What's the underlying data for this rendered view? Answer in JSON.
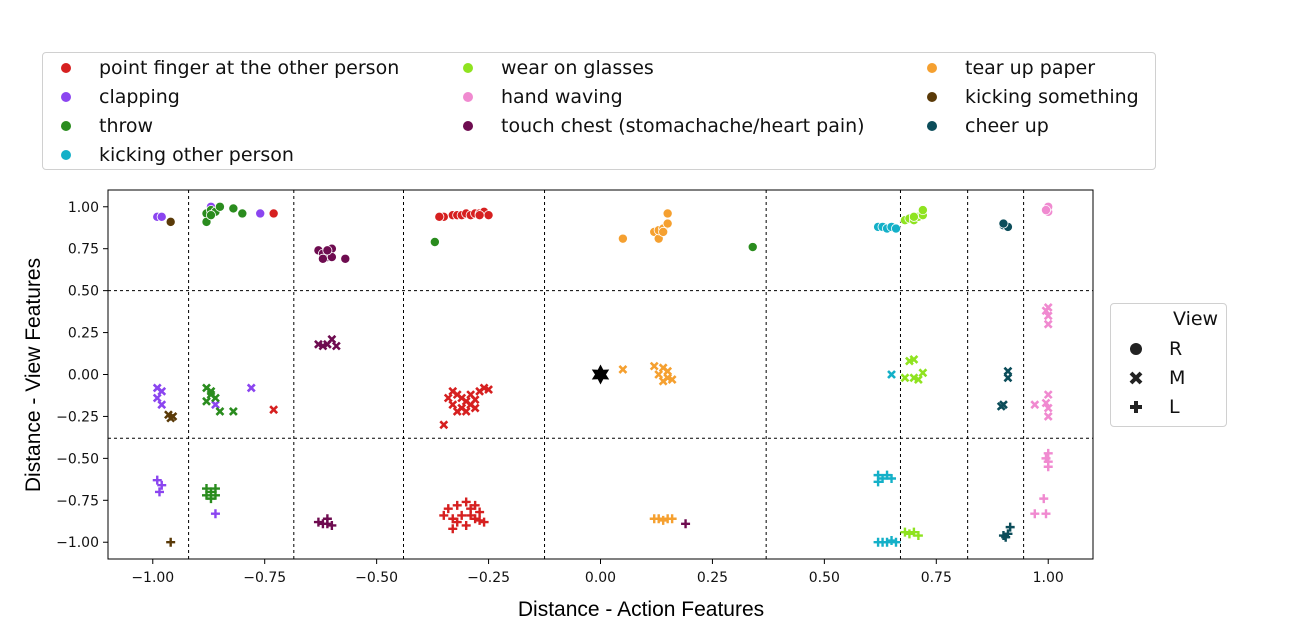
{
  "legend_colors": {
    "title": "",
    "items": [
      {
        "label": "point finger at the other person",
        "color": "#d62020"
      },
      {
        "label": "clapping",
        "color": "#8b45f0"
      },
      {
        "label": "throw",
        "color": "#2a8c1e"
      },
      {
        "label": "kicking other person",
        "color": "#14b0c8"
      },
      {
        "label": "wear on glasses",
        "color": "#8fe320"
      },
      {
        "label": "hand waving",
        "color": "#f08ad0"
      },
      {
        "label": "touch chest (stomachache/heart pain)",
        "color": "#6e0c50"
      },
      {
        "label": "tear up paper",
        "color": "#f5a030"
      },
      {
        "label": "kicking something",
        "color": "#5a3a08"
      },
      {
        "label": "cheer up",
        "color": "#0c4d5a"
      }
    ]
  },
  "legend_markers": {
    "title": "View",
    "items": [
      {
        "label": "R",
        "marker": "circle"
      },
      {
        "label": "M",
        "marker": "x"
      },
      {
        "label": "L",
        "marker": "plus"
      }
    ]
  },
  "chart_data": {
    "type": "scatter",
    "xlabel": "Distance - Action Features",
    "ylabel": "Distance - View Features",
    "xlim": [
      -1.1,
      1.1
    ],
    "ylim": [
      -1.1,
      1.1
    ],
    "xticks": [
      -1.0,
      -0.75,
      -0.5,
      -0.25,
      0.0,
      0.25,
      0.5,
      0.75,
      1.0
    ],
    "xtick_labels": [
      "−1.00",
      "−0.75",
      "−0.50",
      "−0.25",
      "0.00",
      "0.25",
      "0.50",
      "0.75",
      "1.00"
    ],
    "yticks": [
      1.0,
      0.75,
      0.5,
      0.25,
      0.0,
      -0.25,
      -0.5,
      -0.75,
      -1.0
    ],
    "ytick_labels": [
      "1.00",
      "0.75",
      "0.50",
      "0.25",
      "0.00",
      "−0.25",
      "−0.50",
      "−0.75",
      "−1.00"
    ],
    "grid": false,
    "dashed_vertical_lines": [
      -0.92,
      -0.685,
      -0.44,
      -0.125,
      0.37,
      0.67,
      0.82,
      0.945
    ],
    "dashed_horizontal_lines": [
      0.5,
      -0.38
    ],
    "anchor_point": {
      "x": 0.0,
      "y": 0.0,
      "marker": "star",
      "color": "#000000"
    },
    "series": [
      {
        "name": "point finger at the other person",
        "color": "#d62020",
        "R": [
          [
            -0.33,
            0.95
          ],
          [
            -0.32,
            0.95
          ],
          [
            -0.31,
            0.95
          ],
          [
            -0.3,
            0.96
          ],
          [
            -0.29,
            0.95
          ],
          [
            -0.28,
            0.96
          ],
          [
            -0.27,
            0.96
          ],
          [
            -0.26,
            0.97
          ],
          [
            -0.25,
            0.95
          ],
          [
            -0.35,
            0.94
          ],
          [
            -0.36,
            0.94
          ],
          [
            -0.27,
            0.95
          ],
          [
            -0.73,
            0.96
          ]
        ],
        "M": [
          [
            -0.34,
            -0.14
          ],
          [
            -0.33,
            -0.18
          ],
          [
            -0.32,
            -0.12
          ],
          [
            -0.31,
            -0.2
          ],
          [
            -0.3,
            -0.16
          ],
          [
            -0.29,
            -0.12
          ],
          [
            -0.28,
            -0.15
          ],
          [
            -0.27,
            -0.1
          ],
          [
            -0.26,
            -0.08
          ],
          [
            -0.3,
            -0.22
          ],
          [
            -0.32,
            -0.22
          ],
          [
            -0.28,
            -0.2
          ],
          [
            -0.25,
            -0.09
          ],
          [
            -0.33,
            -0.1
          ],
          [
            -0.35,
            -0.3
          ],
          [
            -0.29,
            -0.18
          ],
          [
            -0.31,
            -0.14
          ],
          [
            -0.73,
            -0.21
          ]
        ],
        "L": [
          [
            -0.34,
            -0.8
          ],
          [
            -0.33,
            -0.86
          ],
          [
            -0.32,
            -0.78
          ],
          [
            -0.31,
            -0.84
          ],
          [
            -0.3,
            -0.9
          ],
          [
            -0.29,
            -0.8
          ],
          [
            -0.28,
            -0.86
          ],
          [
            -0.27,
            -0.82
          ],
          [
            -0.26,
            -0.88
          ],
          [
            -0.33,
            -0.92
          ],
          [
            -0.3,
            -0.76
          ],
          [
            -0.28,
            -0.78
          ],
          [
            -0.35,
            -0.84
          ],
          [
            -0.32,
            -0.88
          ],
          [
            -0.27,
            -0.87
          ],
          [
            -0.29,
            -0.84
          ]
        ]
      },
      {
        "name": "clapping",
        "color": "#8b45f0",
        "R": [
          [
            -0.99,
            0.94
          ],
          [
            -0.98,
            0.94
          ],
          [
            -0.87,
            1.0
          ],
          [
            -0.76,
            0.96
          ]
        ],
        "M": [
          [
            -0.99,
            -0.08
          ],
          [
            -0.98,
            -0.1
          ],
          [
            -0.99,
            -0.14
          ],
          [
            -0.98,
            -0.18
          ],
          [
            -0.78,
            -0.08
          ],
          [
            -0.86,
            -0.18
          ]
        ],
        "L": [
          [
            -0.99,
            -0.63
          ],
          [
            -0.98,
            -0.66
          ],
          [
            -0.985,
            -0.7
          ],
          [
            -0.86,
            -0.83
          ]
        ]
      },
      {
        "name": "throw",
        "color": "#2a8c1e",
        "R": [
          [
            -0.88,
            0.96
          ],
          [
            -0.87,
            0.98
          ],
          [
            -0.86,
            0.97
          ],
          [
            -0.85,
            1.0
          ],
          [
            -0.88,
            0.91
          ],
          [
            -0.82,
            0.99
          ],
          [
            -0.8,
            0.96
          ],
          [
            -0.87,
            0.95
          ],
          [
            -0.37,
            0.79
          ],
          [
            0.34,
            0.76
          ]
        ],
        "M": [
          [
            -0.88,
            -0.08
          ],
          [
            -0.87,
            -0.12
          ],
          [
            -0.86,
            -0.14
          ],
          [
            -0.88,
            -0.16
          ],
          [
            -0.85,
            -0.22
          ],
          [
            -0.82,
            -0.22
          ],
          [
            -0.87,
            -0.1
          ]
        ],
        "L": [
          [
            -0.88,
            -0.68
          ],
          [
            -0.87,
            -0.7
          ],
          [
            -0.86,
            -0.72
          ],
          [
            -0.88,
            -0.72
          ],
          [
            -0.87,
            -0.74
          ],
          [
            -0.86,
            -0.68
          ]
        ]
      },
      {
        "name": "kicking other person",
        "color": "#14b0c8",
        "R": [
          [
            0.62,
            0.88
          ],
          [
            0.63,
            0.88
          ],
          [
            0.64,
            0.87
          ],
          [
            0.65,
            0.88
          ],
          [
            0.66,
            0.87
          ]
        ],
        "M": [
          [
            0.65,
            0.0
          ]
        ],
        "L": [
          [
            0.62,
            -0.6
          ],
          [
            0.63,
            -0.62
          ],
          [
            0.64,
            -0.6
          ],
          [
            0.62,
            -0.64
          ],
          [
            0.65,
            -0.62
          ],
          [
            0.63,
            -1.0
          ],
          [
            0.64,
            -1.0
          ],
          [
            0.65,
            -0.99
          ],
          [
            0.66,
            -1.0
          ],
          [
            0.62,
            -1.0
          ]
        ]
      },
      {
        "name": "wear on glasses",
        "color": "#8fe320",
        "R": [
          [
            0.68,
            0.92
          ],
          [
            0.69,
            0.93
          ],
          [
            0.7,
            0.92
          ],
          [
            0.71,
            0.94
          ],
          [
            0.72,
            0.95
          ],
          [
            0.72,
            0.98
          ],
          [
            0.7,
            0.94
          ]
        ],
        "M": [
          [
            0.69,
            0.08
          ],
          [
            0.7,
            0.09
          ],
          [
            0.7,
            -0.02
          ],
          [
            0.71,
            -0.03
          ],
          [
            0.72,
            0.01
          ],
          [
            0.68,
            -0.02
          ]
        ],
        "L": [
          [
            0.69,
            -0.95
          ],
          [
            0.7,
            -0.94
          ],
          [
            0.71,
            -0.96
          ],
          [
            0.68,
            -0.94
          ]
        ]
      },
      {
        "name": "hand waving",
        "color": "#f08ad0",
        "R": [
          [
            1.0,
            0.97
          ],
          [
            1.0,
            1.0
          ],
          [
            0.995,
            0.98
          ]
        ],
        "M": [
          [
            1.0,
            0.3
          ],
          [
            1.0,
            0.35
          ],
          [
            1.0,
            0.4
          ],
          [
            0.995,
            0.38
          ],
          [
            1.0,
            -0.12
          ],
          [
            1.0,
            -0.2
          ],
          [
            1.0,
            -0.25
          ],
          [
            0.995,
            -0.17
          ],
          [
            0.97,
            -0.18
          ]
        ],
        "L": [
          [
            1.0,
            -0.47
          ],
          [
            1.0,
            -0.52
          ],
          [
            1.0,
            -0.55
          ],
          [
            0.995,
            -0.5
          ],
          [
            0.99,
            -0.74
          ],
          [
            0.97,
            -0.83
          ],
          [
            0.995,
            -0.83
          ]
        ]
      },
      {
        "name": "touch chest (stomachache/heart pain)",
        "color": "#6e0c50",
        "R": [
          [
            -0.63,
            0.74
          ],
          [
            -0.62,
            0.72
          ],
          [
            -0.61,
            0.7
          ],
          [
            -0.6,
            0.75
          ],
          [
            -0.62,
            0.69
          ],
          [
            -0.6,
            0.7
          ],
          [
            -0.61,
            0.74
          ],
          [
            -0.57,
            0.69
          ]
        ],
        "M": [
          [
            -0.63,
            0.18
          ],
          [
            -0.62,
            0.17
          ],
          [
            -0.61,
            0.18
          ],
          [
            -0.6,
            0.21
          ],
          [
            -0.59,
            0.17
          ]
        ],
        "L": [
          [
            -0.63,
            -0.88
          ],
          [
            -0.62,
            -0.89
          ],
          [
            -0.61,
            -0.86
          ],
          [
            -0.6,
            -0.9
          ],
          [
            -0.61,
            -0.89
          ],
          [
            0.19,
            -0.89
          ]
        ]
      },
      {
        "name": "tear up paper",
        "color": "#f5a030",
        "R": [
          [
            0.05,
            0.81
          ],
          [
            0.12,
            0.85
          ],
          [
            0.13,
            0.81
          ],
          [
            0.13,
            0.86
          ],
          [
            0.14,
            0.87
          ],
          [
            0.15,
            0.9
          ],
          [
            0.15,
            0.96
          ],
          [
            0.14,
            0.85
          ]
        ],
        "M": [
          [
            0.05,
            0.03
          ],
          [
            0.12,
            0.05
          ],
          [
            0.13,
            0.0
          ],
          [
            0.14,
            0.04
          ],
          [
            0.15,
            -0.02
          ],
          [
            0.14,
            -0.04
          ],
          [
            0.15,
            0.02
          ],
          [
            0.16,
            -0.03
          ]
        ],
        "L": [
          [
            0.12,
            -0.86
          ],
          [
            0.13,
            -0.86
          ],
          [
            0.14,
            -0.87
          ],
          [
            0.15,
            -0.86
          ],
          [
            0.16,
            -0.86
          ]
        ]
      },
      {
        "name": "kicking something",
        "color": "#5a3a08",
        "R": [
          [
            -0.96,
            0.91
          ]
        ],
        "M": [
          [
            -0.965,
            -0.24
          ],
          [
            -0.96,
            -0.26
          ],
          [
            -0.955,
            -0.25
          ]
        ],
        "L": [
          [
            -0.96,
            -1.0
          ]
        ]
      },
      {
        "name": "cheer up",
        "color": "#0c4d5a",
        "R": [
          [
            0.9,
            0.89
          ],
          [
            0.91,
            0.88
          ],
          [
            0.9,
            0.9
          ]
        ],
        "M": [
          [
            0.91,
            -0.02
          ],
          [
            0.91,
            0.02
          ],
          [
            0.9,
            -0.18
          ],
          [
            0.895,
            -0.19
          ]
        ],
        "L": [
          [
            0.9,
            -0.96
          ],
          [
            0.91,
            -0.95
          ],
          [
            0.915,
            -0.91
          ],
          [
            0.905,
            -0.97
          ]
        ]
      }
    ]
  }
}
